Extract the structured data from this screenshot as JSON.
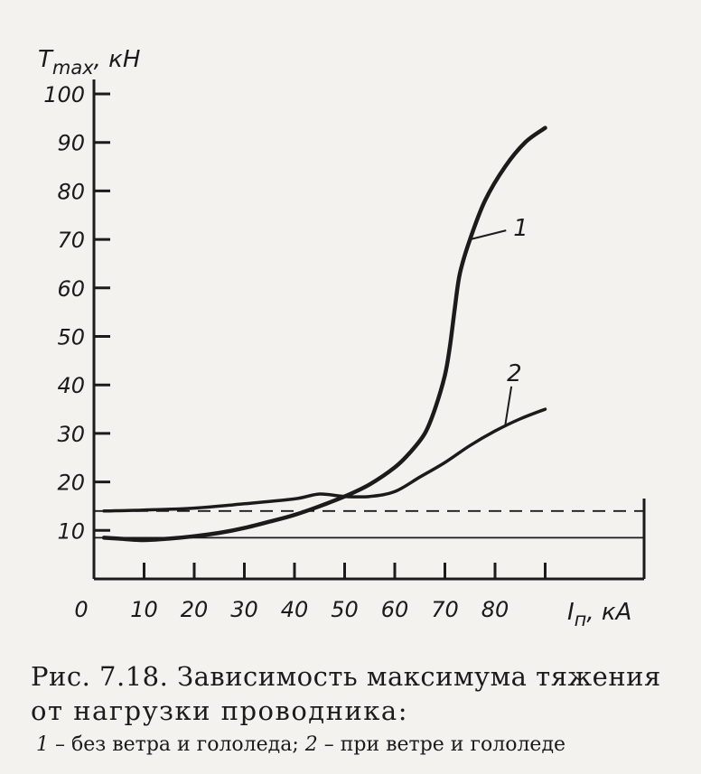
{
  "chart_data": {
    "type": "line",
    "ylabel": "T",
    "ylabel_sub": "max",
    "ylabel_unit": ", кН",
    "xlabel": "I",
    "xlabel_sub": "п",
    "xlabel_unit": ", кА",
    "xlim": [
      0,
      90
    ],
    "ylim": [
      0,
      100
    ],
    "x_ticks": [
      0,
      10,
      20,
      30,
      40,
      50,
      60,
      70,
      80,
      90
    ],
    "x_tick_labels": [
      "0",
      "10",
      "20",
      "30",
      "40",
      "50",
      "60",
      "70",
      "80",
      ""
    ],
    "y_ticks": [
      10,
      20,
      30,
      40,
      50,
      60,
      70,
      80,
      90,
      100
    ],
    "y_tick_labels": [
      "10",
      "20",
      "30",
      "40",
      "50",
      "60",
      "70",
      "80",
      "90",
      "100"
    ],
    "grid": false,
    "series": [
      {
        "name": "1",
        "x": [
          2,
          5,
          10,
          15,
          20,
          25,
          30,
          35,
          40,
          45,
          50,
          55,
          60,
          63,
          66,
          68,
          70,
          71,
          72,
          73,
          75,
          78,
          82,
          86,
          90
        ],
        "y": [
          8.5,
          8.3,
          8.0,
          8.3,
          8.8,
          9.5,
          10.5,
          11.8,
          13.2,
          15.0,
          17.0,
          19.5,
          23.0,
          26.0,
          30.0,
          35.0,
          42.0,
          48.0,
          56.0,
          63.0,
          70.0,
          78.0,
          85.0,
          90.0,
          93.0
        ]
      },
      {
        "name": "2",
        "x": [
          2,
          10,
          20,
          30,
          40,
          45,
          50,
          55,
          60,
          65,
          70,
          75,
          80,
          85,
          90
        ],
        "y": [
          14.0,
          14.2,
          14.6,
          15.5,
          16.5,
          17.5,
          17.0,
          17.0,
          18.0,
          21.0,
          24.0,
          27.5,
          30.5,
          33.0,
          35.0
        ]
      }
    ],
    "reference_lines": [
      {
        "style": "solid",
        "y": 8.5
      },
      {
        "style": "dashed",
        "y": 14.0
      }
    ],
    "series_labels": [
      {
        "text": "1",
        "series": 0,
        "at_x": 75
      },
      {
        "text": "2",
        "series": 1,
        "at_x": 82
      }
    ]
  },
  "caption": {
    "line1": "Рис. 7.18. Зависимость максимума тяжения",
    "line2": "от нагрузки проводника:",
    "line3_num1": "1",
    "line3_text1": " – без ветра и гололеда; ",
    "line3_num2": "2",
    "line3_text2": " – при ветре и гололеде"
  }
}
